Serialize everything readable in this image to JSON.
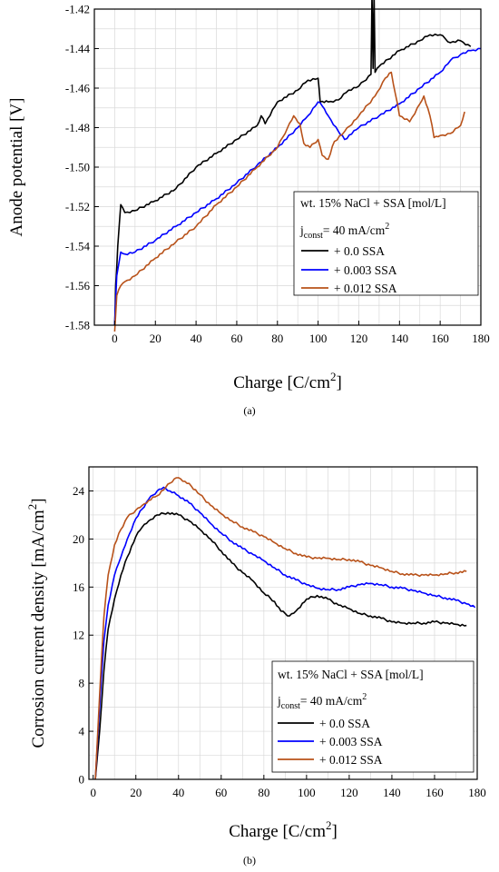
{
  "chart_data": [
    {
      "type": "line",
      "panel_label": "(a)",
      "xlabel": {
        "main": "Charge [C/cm",
        "sup": "2",
        "tail": "]"
      },
      "ylabel": "Anode potential [V]",
      "xlim": [
        -10,
        180
      ],
      "ylim": [
        -1.58,
        -1.42
      ],
      "xticks": [
        {
          "value": 0,
          "label": "0"
        },
        {
          "value": 20,
          "label": "20"
        },
        {
          "value": 40,
          "label": "40"
        },
        {
          "value": 60,
          "label": "60"
        },
        {
          "value": 80,
          "label": "80"
        },
        {
          "value": 100,
          "label": "100"
        },
        {
          "value": 120,
          "label": "120"
        },
        {
          "value": 140,
          "label": "140"
        },
        {
          "value": 160,
          "label": "160"
        },
        {
          "value": 180,
          "label": "180"
        }
      ],
      "yticks": [
        {
          "value": -1.58,
          "label": "-1.58"
        },
        {
          "value": -1.56,
          "label": "-1.56"
        },
        {
          "value": -1.54,
          "label": "-1.54"
        },
        {
          "value": -1.52,
          "label": "-1.52"
        },
        {
          "value": -1.5,
          "label": "-1.50"
        },
        {
          "value": -1.48,
          "label": "-1.48"
        },
        {
          "value": -1.46,
          "label": "-1.46"
        },
        {
          "value": -1.44,
          "label": "-1.44"
        },
        {
          "value": -1.42,
          "label": "-1.42"
        }
      ],
      "grid": true,
      "legend_placement": "lower-right",
      "legend_title": "wt. 15% NaCl + SSA [mol/L]",
      "legend_subtitle": {
        "main": "j",
        "sub": "const",
        "mid": "= 40 mA/cm",
        "sup": "2"
      },
      "series": [
        {
          "name": "+ 0.0 SSA",
          "color": "#000000",
          "x": [
            0,
            0.5,
            1.5,
            3,
            5,
            10,
            20,
            30,
            40,
            50,
            60,
            70,
            72,
            74,
            80,
            90,
            95,
            100,
            101,
            105,
            110,
            115,
            120,
            126,
            126.5,
            127,
            127.5,
            128,
            130,
            140,
            150,
            155,
            160,
            165,
            170,
            175
          ],
          "y": [
            -1.58,
            -1.56,
            -1.54,
            -1.519,
            -1.523,
            -1.522,
            -1.517,
            -1.511,
            -1.5,
            -1.493,
            -1.486,
            -1.479,
            -1.474,
            -1.478,
            -1.467,
            -1.461,
            -1.456,
            -1.455,
            -1.467,
            -1.467,
            -1.466,
            -1.461,
            -1.459,
            -1.453,
            -1.4,
            -1.45,
            -1.4,
            -1.452,
            -1.449,
            -1.441,
            -1.436,
            -1.433,
            -1.433,
            -1.437,
            -1.436,
            -1.439
          ]
        },
        {
          "name": "+ 0.003 SSA",
          "color": "#0000ff",
          "x": [
            0,
            1,
            3,
            5,
            10,
            20,
            30,
            40,
            50,
            60,
            70,
            80,
            90,
            95,
            100,
            102,
            105,
            110,
            113,
            120,
            130,
            140,
            150,
            160,
            165,
            170,
            175,
            180
          ],
          "y": [
            -1.58,
            -1.555,
            -1.543,
            -1.544,
            -1.543,
            -1.537,
            -1.53,
            -1.523,
            -1.516,
            -1.508,
            -1.499,
            -1.49,
            -1.48,
            -1.474,
            -1.467,
            -1.469,
            -1.474,
            -1.482,
            -1.486,
            -1.48,
            -1.474,
            -1.468,
            -1.46,
            -1.452,
            -1.446,
            -1.443,
            -1.441,
            -1.44
          ]
        },
        {
          "name": "+ 0.012 SSA",
          "color": "#b8521a",
          "x": [
            0,
            1,
            3,
            5,
            10,
            20,
            30,
            40,
            50,
            60,
            70,
            80,
            85,
            88,
            91,
            93,
            96,
            100,
            102,
            105,
            108,
            113,
            120,
            128,
            133,
            136,
            138,
            140,
            145,
            150,
            152,
            155,
            157,
            160,
            165,
            170,
            172
          ],
          "y": [
            -1.585,
            -1.565,
            -1.56,
            -1.558,
            -1.555,
            -1.546,
            -1.538,
            -1.53,
            -1.519,
            -1.51,
            -1.5,
            -1.49,
            -1.48,
            -1.474,
            -1.478,
            -1.488,
            -1.49,
            -1.486,
            -1.494,
            -1.496,
            -1.487,
            -1.482,
            -1.474,
            -1.464,
            -1.455,
            -1.452,
            -1.463,
            -1.474,
            -1.477,
            -1.468,
            -1.464,
            -1.474,
            -1.485,
            -1.484,
            -1.483,
            -1.479,
            -1.472
          ]
        }
      ]
    },
    {
      "type": "line",
      "panel_label": "(b)",
      "xlabel": {
        "main": "Charge [C/cm",
        "sup": "2",
        "tail": "]"
      },
      "ylabel": {
        "main": "Corrosion current density [mA/cm",
        "sup": "2",
        "tail": "]"
      },
      "xlim": [
        -2,
        180
      ],
      "ylim": [
        0,
        26
      ],
      "xticks": [
        {
          "value": 0,
          "label": "0"
        },
        {
          "value": 20,
          "label": "20"
        },
        {
          "value": 40,
          "label": "40"
        },
        {
          "value": 60,
          "label": "60"
        },
        {
          "value": 80,
          "label": "80"
        },
        {
          "value": 100,
          "label": "100"
        },
        {
          "value": 120,
          "label": "120"
        },
        {
          "value": 140,
          "label": "140"
        },
        {
          "value": 160,
          "label": "160"
        },
        {
          "value": 180,
          "label": "180"
        }
      ],
      "yticks": [
        {
          "value": 0,
          "label": "0"
        },
        {
          "value": 4,
          "label": "4"
        },
        {
          "value": 8,
          "label": "8"
        },
        {
          "value": 12,
          "label": "12"
        },
        {
          "value": 16,
          "label": "16"
        },
        {
          "value": 20,
          "label": "20"
        },
        {
          "value": 24,
          "label": "24"
        }
      ],
      "grid": true,
      "legend_placement": "lower-right",
      "legend_title": "wt. 15% NaCl + SSA [mol/L]",
      "legend_subtitle": {
        "main": "j",
        "sub": "const",
        "mid": "= 40 mA/cm",
        "sup": "2"
      },
      "series": [
        {
          "name": "+ 0.0 SSA",
          "color": "#000000",
          "x": [
            1,
            3,
            5,
            7,
            10,
            13,
            16,
            20,
            23,
            26,
            30,
            35,
            40,
            45,
            50,
            55,
            60,
            65,
            70,
            75,
            80,
            85,
            88,
            92,
            95,
            100,
            105,
            110,
            115,
            120,
            125,
            130,
            135,
            140,
            145,
            150,
            155,
            160,
            165,
            170,
            175
          ],
          "y": [
            0,
            4,
            9,
            12.5,
            15,
            17,
            18.5,
            20.2,
            21,
            21.5,
            22,
            22.2,
            22,
            21.5,
            20.8,
            20,
            19,
            18,
            17.2,
            16.5,
            15.5,
            14.8,
            14,
            13.6,
            14,
            15,
            15.3,
            15,
            14.5,
            14.2,
            13.8,
            13.6,
            13.4,
            13.1,
            13,
            13,
            13,
            13.1,
            13,
            12.9,
            12.8
          ]
        },
        {
          "name": "+ 0.003 SSA",
          "color": "#0000ff",
          "x": [
            1,
            3,
            5,
            7,
            10,
            13,
            16,
            20,
            23,
            26,
            30,
            33,
            36,
            40,
            45,
            50,
            55,
            60,
            65,
            70,
            75,
            80,
            85,
            90,
            95,
            100,
            105,
            110,
            115,
            120,
            125,
            130,
            135,
            140,
            145,
            150,
            155,
            160,
            165,
            170,
            175,
            179
          ],
          "y": [
            0,
            6,
            11.5,
            14.5,
            17,
            18.5,
            20,
            21.7,
            22.5,
            23.3,
            24,
            24.3,
            24,
            23.6,
            23,
            22.2,
            21.3,
            20.5,
            19.8,
            19.2,
            18.7,
            18.2,
            17.6,
            17,
            16.6,
            16.2,
            15.9,
            15.8,
            15.8,
            16,
            16.2,
            16.3,
            16.2,
            16,
            15.9,
            15.7,
            15.5,
            15.3,
            15.1,
            14.9,
            14.6,
            14.3
          ]
        },
        {
          "name": "+ 0.012 SSA",
          "color": "#b8521a",
          "x": [
            1,
            3,
            5,
            7,
            10,
            13,
            16,
            20,
            23,
            26,
            30,
            34,
            38,
            40,
            43,
            46,
            50,
            55,
            60,
            65,
            70,
            75,
            80,
            85,
            90,
            95,
            100,
            105,
            110,
            115,
            120,
            125,
            130,
            135,
            140,
            145,
            150,
            155,
            160,
            165,
            170,
            175
          ],
          "y": [
            0,
            7,
            13.5,
            17,
            19.5,
            20.8,
            21.8,
            22.4,
            22.8,
            23.2,
            23.6,
            24.3,
            25,
            25.1,
            24.8,
            24.4,
            23.7,
            22.8,
            22.1,
            21.5,
            21,
            20.6,
            20.2,
            19.7,
            19.2,
            18.8,
            18.5,
            18.4,
            18.4,
            18.3,
            18.3,
            18.1,
            17.8,
            17.6,
            17.3,
            17.1,
            17,
            17,
            17,
            17.1,
            17.2,
            17.3
          ]
        }
      ]
    }
  ]
}
